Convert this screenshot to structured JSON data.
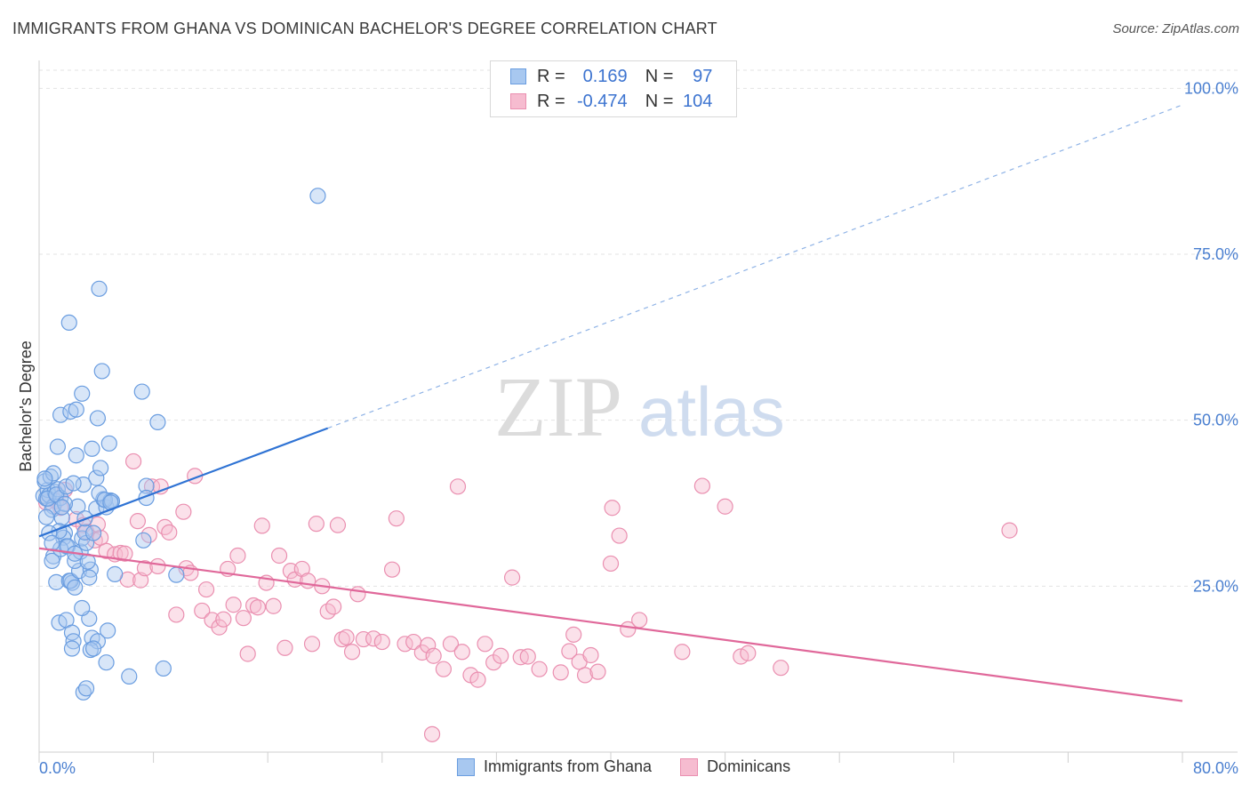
{
  "title": "IMMIGRANTS FROM GHANA VS DOMINICAN BACHELOR'S DEGREE CORRELATION CHART",
  "source": "Source: ZipAtlas.com",
  "watermark": {
    "zip": "ZIP",
    "atlas": "atlas"
  },
  "legend": {
    "rows": [
      {
        "r_label": "R =",
        "r_value": "0.169",
        "n_label": "N =",
        "n_value": "97"
      },
      {
        "r_label": "R =",
        "r_value": "-0.474",
        "n_label": "N =",
        "n_value": "104"
      }
    ]
  },
  "bottom_legend": [
    "Immigrants from Ghana",
    "Dominicans"
  ],
  "colors": {
    "blue_fill": "#a8c8f0",
    "blue_stroke": "#6a9de0",
    "blue_line": "#2f73d4",
    "pink_fill": "#f6bcd0",
    "pink_stroke": "#ea8fb0",
    "pink_line": "#e0689a",
    "tick": "#4a7fd0"
  },
  "chart_data": {
    "type": "scatter",
    "title": "IMMIGRANTS FROM GHANA VS DOMINICAN BACHELOR'S DEGREE CORRELATION CHART",
    "xlabel": "",
    "ylabel": "Bachelor's Degree",
    "xlim": [
      0,
      80
    ],
    "ylim": [
      0,
      105
    ],
    "x_tick_labels": [
      "0.0%",
      "80.0%"
    ],
    "y_ticks": [
      25,
      50,
      75,
      100
    ],
    "y_tick_labels": [
      "25.0%",
      "50.0%",
      "75.0%",
      "100.0%"
    ],
    "grid": true,
    "legend_position": "top-center",
    "series": [
      {
        "name": "Immigrants from Ghana",
        "color": "#6a9de0",
        "trend": {
          "x": [
            0,
            20.2
          ],
          "y": [
            32.5,
            48.8
          ],
          "dashed_extension_to": [
            80,
            97.5
          ]
        },
        "points": [
          [
            0.3,
            38.6
          ],
          [
            0.5,
            38.2
          ],
          [
            0.6,
            39.5
          ],
          [
            0.4,
            40.8
          ],
          [
            0.8,
            41.5
          ],
          [
            0.7,
            38.7
          ],
          [
            1.1,
            39.2
          ],
          [
            1.0,
            37.0
          ],
          [
            0.9,
            36.5
          ],
          [
            0.6,
            38.2
          ],
          [
            1.3,
            39.6
          ],
          [
            1.5,
            38.3
          ],
          [
            1.2,
            38.8
          ],
          [
            0.5,
            35.4
          ],
          [
            1.6,
            35.3
          ],
          [
            1.8,
            33.0
          ],
          [
            1.7,
            32.3
          ],
          [
            1.4,
            33.3
          ],
          [
            1.9,
            31.0
          ],
          [
            1.0,
            29.5
          ],
          [
            0.9,
            28.8
          ],
          [
            1.5,
            30.6
          ],
          [
            2.0,
            31.0
          ],
          [
            1.2,
            25.6
          ],
          [
            2.1,
            25.8
          ],
          [
            2.3,
            25.5
          ],
          [
            2.2,
            25.8
          ],
          [
            2.5,
            24.8
          ],
          [
            2.8,
            27.3
          ],
          [
            3.6,
            27.5
          ],
          [
            3.5,
            26.3
          ],
          [
            2.5,
            28.8
          ],
          [
            2.9,
            30.2
          ],
          [
            3.0,
            32.2
          ],
          [
            3.3,
            31.5
          ],
          [
            3.2,
            33.1
          ],
          [
            3.8,
            33.0
          ],
          [
            4.0,
            36.7
          ],
          [
            4.7,
            36.9
          ],
          [
            4.5,
            38.1
          ],
          [
            5.0,
            37.9
          ],
          [
            4.2,
            39.0
          ],
          [
            4.6,
            38.0
          ],
          [
            5.1,
            37.8
          ],
          [
            2.7,
            37.0
          ],
          [
            3.1,
            40.3
          ],
          [
            4.0,
            41.3
          ],
          [
            4.3,
            42.8
          ],
          [
            3.2,
            35.2
          ],
          [
            1.9,
            40.0
          ],
          [
            2.6,
            44.7
          ],
          [
            1.3,
            46.0
          ],
          [
            1.5,
            50.8
          ],
          [
            2.2,
            51.3
          ],
          [
            2.6,
            51.6
          ],
          [
            3.0,
            54.0
          ],
          [
            3.7,
            45.7
          ],
          [
            4.1,
            50.3
          ],
          [
            4.9,
            46.5
          ],
          [
            5.0,
            37.6
          ],
          [
            2.1,
            64.7
          ],
          [
            4.2,
            69.8
          ],
          [
            4.4,
            57.4
          ],
          [
            7.2,
            54.3
          ],
          [
            8.3,
            49.7
          ],
          [
            7.5,
            40.1
          ],
          [
            7.3,
            31.9
          ],
          [
            9.6,
            26.7
          ],
          [
            5.3,
            26.8
          ],
          [
            7.5,
            38.3
          ],
          [
            1.4,
            19.5
          ],
          [
            1.9,
            19.9
          ],
          [
            2.3,
            18.0
          ],
          [
            2.4,
            16.7
          ],
          [
            3.5,
            20.1
          ],
          [
            3.7,
            17.2
          ],
          [
            4.1,
            16.7
          ],
          [
            4.8,
            18.3
          ],
          [
            3.0,
            21.7
          ],
          [
            2.3,
            15.6
          ],
          [
            3.6,
            15.4
          ],
          [
            3.8,
            15.6
          ],
          [
            4.7,
            13.5
          ],
          [
            2.5,
            29.9
          ],
          [
            3.1,
            9.0
          ],
          [
            3.3,
            9.6
          ],
          [
            6.3,
            11.4
          ],
          [
            8.7,
            12.6
          ],
          [
            19.5,
            83.8
          ],
          [
            1.0,
            42.0
          ],
          [
            0.7,
            33.0
          ],
          [
            1.8,
            37.4
          ],
          [
            2.4,
            40.5
          ],
          [
            0.9,
            31.5
          ],
          [
            1.6,
            36.9
          ],
          [
            3.4,
            28.7
          ],
          [
            0.4,
            41.2
          ]
        ]
      },
      {
        "name": "Dominicans",
        "color": "#ea8fb0",
        "trend": {
          "x": [
            0,
            80
          ],
          "y": [
            30.7,
            7.7
          ]
        },
        "points": [
          [
            0.5,
            37.6
          ],
          [
            1.2,
            37.8
          ],
          [
            1.5,
            36.8
          ],
          [
            1.8,
            39.5
          ],
          [
            2.6,
            35.1
          ],
          [
            3.1,
            34.2
          ],
          [
            3.3,
            33.2
          ],
          [
            3.9,
            31.9
          ],
          [
            4.3,
            32.3
          ],
          [
            4.1,
            34.3
          ],
          [
            4.7,
            30.3
          ],
          [
            5.3,
            29.8
          ],
          [
            5.7,
            30.0
          ],
          [
            6.0,
            29.9
          ],
          [
            6.2,
            26.0
          ],
          [
            6.6,
            43.8
          ],
          [
            6.9,
            34.8
          ],
          [
            7.1,
            25.9
          ],
          [
            7.4,
            27.7
          ],
          [
            7.7,
            32.7
          ],
          [
            7.9,
            40.0
          ],
          [
            8.3,
            28.0
          ],
          [
            8.5,
            40.0
          ],
          [
            8.8,
            33.9
          ],
          [
            9.1,
            33.1
          ],
          [
            9.6,
            20.7
          ],
          [
            10.1,
            36.2
          ],
          [
            10.3,
            27.7
          ],
          [
            10.6,
            27.0
          ],
          [
            10.9,
            41.6
          ],
          [
            11.4,
            21.3
          ],
          [
            11.7,
            24.5
          ],
          [
            12.1,
            19.9
          ],
          [
            12.6,
            18.8
          ],
          [
            12.9,
            20.0
          ],
          [
            13.2,
            27.6
          ],
          [
            13.6,
            22.2
          ],
          [
            13.9,
            29.6
          ],
          [
            14.3,
            20.2
          ],
          [
            14.6,
            14.8
          ],
          [
            15.0,
            22.1
          ],
          [
            15.3,
            21.8
          ],
          [
            15.6,
            34.1
          ],
          [
            15.9,
            25.5
          ],
          [
            16.4,
            22.0
          ],
          [
            16.8,
            29.6
          ],
          [
            17.2,
            15.7
          ],
          [
            17.6,
            27.3
          ],
          [
            17.9,
            26.0
          ],
          [
            18.4,
            27.6
          ],
          [
            18.8,
            25.8
          ],
          [
            19.1,
            16.3
          ],
          [
            19.4,
            34.4
          ],
          [
            19.8,
            25.0
          ],
          [
            20.2,
            21.2
          ],
          [
            20.6,
            21.9
          ],
          [
            20.9,
            34.2
          ],
          [
            21.2,
            17.0
          ],
          [
            21.5,
            17.3
          ],
          [
            21.9,
            15.1
          ],
          [
            22.3,
            23.8
          ],
          [
            22.7,
            17.0
          ],
          [
            23.4,
            17.1
          ],
          [
            24.0,
            16.6
          ],
          [
            24.7,
            27.5
          ],
          [
            25.0,
            35.2
          ],
          [
            25.6,
            16.3
          ],
          [
            26.2,
            16.6
          ],
          [
            26.8,
            15.0
          ],
          [
            27.2,
            16.1
          ],
          [
            27.6,
            14.5
          ],
          [
            28.3,
            12.5
          ],
          [
            28.8,
            16.3
          ],
          [
            29.3,
            40.0
          ],
          [
            29.6,
            15.1
          ],
          [
            30.2,
            11.6
          ],
          [
            30.7,
            10.9
          ],
          [
            31.2,
            16.3
          ],
          [
            31.8,
            13.5
          ],
          [
            32.3,
            14.5
          ],
          [
            33.1,
            26.3
          ],
          [
            33.7,
            14.3
          ],
          [
            34.2,
            14.4
          ],
          [
            35.0,
            12.5
          ],
          [
            36.5,
            12.0
          ],
          [
            37.1,
            15.2
          ],
          [
            37.4,
            17.7
          ],
          [
            37.8,
            13.6
          ],
          [
            38.2,
            11.6
          ],
          [
            38.6,
            14.6
          ],
          [
            39.1,
            12.1
          ],
          [
            40.1,
            36.8
          ],
          [
            40.6,
            32.6
          ],
          [
            40.0,
            28.4
          ],
          [
            41.2,
            18.5
          ],
          [
            42.0,
            19.9
          ],
          [
            45.0,
            15.1
          ],
          [
            46.4,
            40.1
          ],
          [
            48.0,
            37.0
          ],
          [
            49.1,
            14.4
          ],
          [
            49.6,
            14.9
          ],
          [
            51.9,
            12.7
          ],
          [
            67.9,
            33.4
          ],
          [
            27.5,
            2.7
          ]
        ]
      }
    ]
  }
}
